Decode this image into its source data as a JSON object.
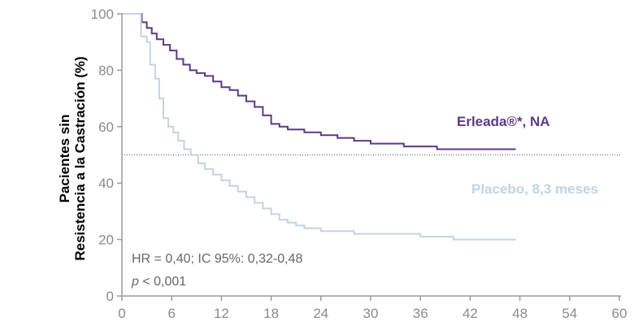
{
  "chart_data": {
    "type": "line",
    "title": "",
    "xlabel": "",
    "ylabel": [
      "Pacientes sin",
      "Resistencia a la Castración (%)"
    ],
    "xlim": [
      0,
      60
    ],
    "ylim": [
      0,
      100
    ],
    "x_ticks": [
      "0",
      "6",
      "12",
      "18",
      "24",
      "30",
      "36",
      "42",
      "48",
      "54",
      "60"
    ],
    "y_ticks": [
      "0",
      "20",
      "40",
      "60",
      "80",
      "100"
    ],
    "grid": false,
    "reference_line": {
      "y": 50,
      "style": "dotted"
    },
    "series": [
      {
        "name": "Erleada®*, NA",
        "color": "#5b3a86",
        "step": true,
        "points": [
          [
            0,
            100
          ],
          [
            2,
            100
          ],
          [
            2.4,
            97
          ],
          [
            3,
            95
          ],
          [
            3.6,
            93
          ],
          [
            4.2,
            91
          ],
          [
            5,
            89
          ],
          [
            5.8,
            87
          ],
          [
            6.6,
            84
          ],
          [
            7.4,
            82
          ],
          [
            8.2,
            80
          ],
          [
            9,
            79
          ],
          [
            10,
            78
          ],
          [
            11,
            76
          ],
          [
            12,
            74
          ],
          [
            13,
            73
          ],
          [
            14,
            71
          ],
          [
            15,
            69
          ],
          [
            16,
            67
          ],
          [
            17,
            64
          ],
          [
            18,
            61
          ],
          [
            19,
            60
          ],
          [
            20,
            59
          ],
          [
            22,
            58
          ],
          [
            24,
            57
          ],
          [
            26,
            56
          ],
          [
            28,
            55
          ],
          [
            30,
            54
          ],
          [
            32,
            54
          ],
          [
            34,
            53
          ],
          [
            36,
            53
          ],
          [
            38,
            52
          ],
          [
            42,
            52
          ],
          [
            47.5,
            52
          ]
        ]
      },
      {
        "name": "Placebo, 8,3 meses",
        "color": "#c3d3df",
        "step": true,
        "points": [
          [
            0,
            100
          ],
          [
            2,
            100
          ],
          [
            2.3,
            92
          ],
          [
            3,
            90
          ],
          [
            3.4,
            82
          ],
          [
            4,
            77
          ],
          [
            4.5,
            70
          ],
          [
            5,
            63
          ],
          [
            5.6,
            60
          ],
          [
            6.2,
            58
          ],
          [
            6.8,
            55
          ],
          [
            7.5,
            52
          ],
          [
            8.3,
            50
          ],
          [
            9.2,
            47
          ],
          [
            10,
            45
          ],
          [
            11,
            43
          ],
          [
            12,
            41
          ],
          [
            13,
            39
          ],
          [
            14,
            37
          ],
          [
            15,
            35
          ],
          [
            16,
            33
          ],
          [
            17,
            31
          ],
          [
            18,
            29
          ],
          [
            19,
            27
          ],
          [
            20,
            26
          ],
          [
            21,
            25
          ],
          [
            22,
            24
          ],
          [
            24,
            23
          ],
          [
            28,
            22
          ],
          [
            32,
            22
          ],
          [
            36,
            21
          ],
          [
            40,
            20
          ],
          [
            47.5,
            20
          ]
        ]
      }
    ],
    "annotations": [
      "HR = 0,40; IC 95%: 0,32-0,48",
      "< 0,001"
    ],
    "p_symbol": "p"
  }
}
